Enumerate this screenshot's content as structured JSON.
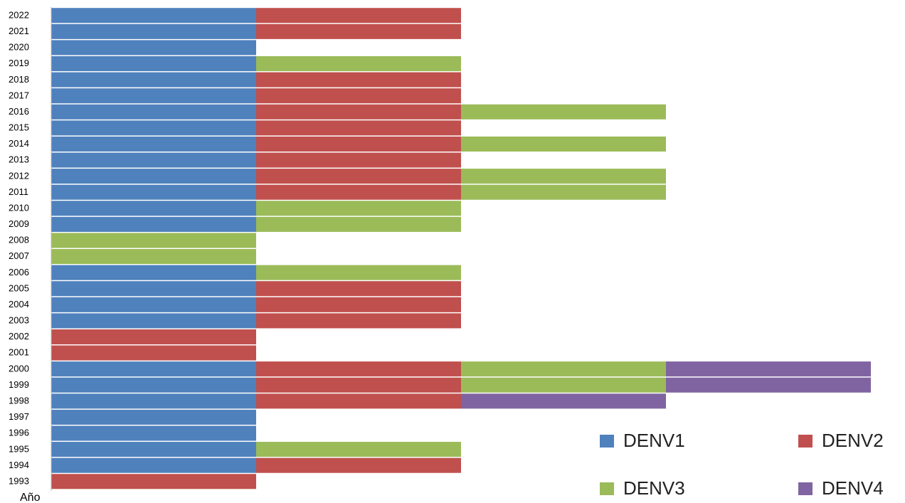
{
  "chart_data": {
    "type": "stacked_bar_horizontal",
    "y_label": "Año",
    "categories": [
      "1993",
      "1994",
      "1995",
      "1996",
      "1997",
      "1998",
      "1999",
      "2000",
      "2001",
      "2002",
      "2003",
      "2004",
      "2005",
      "2006",
      "2007",
      "2008",
      "2009",
      "2010",
      "2011",
      "2012",
      "2013",
      "2014",
      "2015",
      "2016",
      "2017",
      "2018",
      "2019",
      "2020",
      "2021",
      "2022"
    ],
    "xlim": [
      0,
      4
    ],
    "series": [
      {
        "name": "DENV1",
        "color": "#4f81bd",
        "values": [
          0,
          1,
          1,
          1,
          1,
          1,
          1,
          1,
          0,
          0,
          1,
          1,
          1,
          1,
          0,
          0,
          1,
          1,
          1,
          1,
          1,
          1,
          1,
          1,
          1,
          1,
          1,
          1,
          1,
          1
        ]
      },
      {
        "name": "DENV2",
        "color": "#c0504d",
        "values": [
          1,
          1,
          0,
          0,
          0,
          1,
          1,
          1,
          1,
          1,
          1,
          1,
          1,
          0,
          0,
          0,
          0,
          0,
          1,
          1,
          1,
          1,
          1,
          1,
          1,
          1,
          0,
          0,
          1,
          1
        ]
      },
      {
        "name": "DENV3",
        "color": "#9bbb59",
        "values": [
          0,
          0,
          1,
          0,
          0,
          0,
          1,
          1,
          0,
          0,
          0,
          0,
          0,
          1,
          1,
          1,
          1,
          1,
          1,
          1,
          0,
          1,
          0,
          1,
          0,
          0,
          1,
          0,
          0,
          0
        ]
      },
      {
        "name": "DENV4",
        "color": "#8064a2",
        "values": [
          0,
          0,
          0,
          0,
          0,
          1,
          1,
          1,
          0,
          0,
          0,
          0,
          0,
          0,
          0,
          0,
          0,
          0,
          0,
          0,
          0,
          0,
          0,
          0,
          0,
          0,
          0,
          0,
          0,
          0
        ]
      }
    ]
  }
}
